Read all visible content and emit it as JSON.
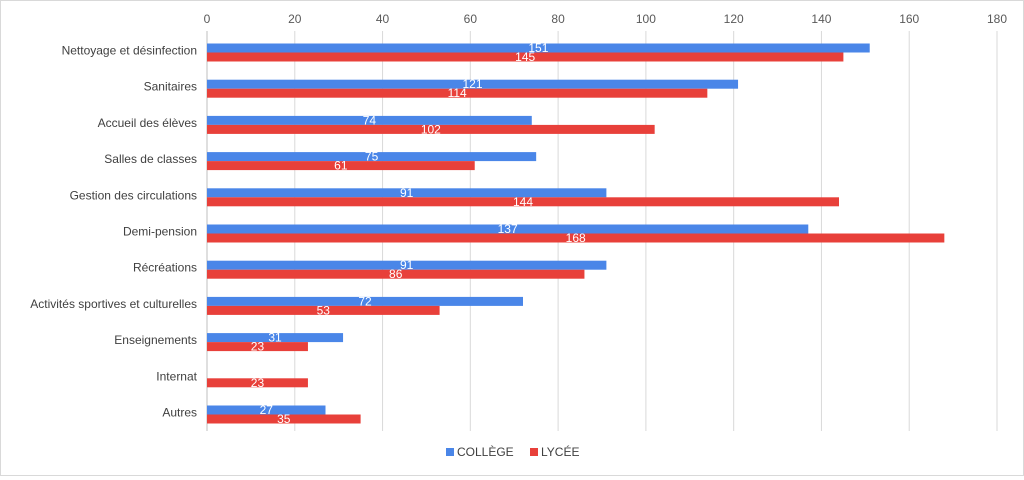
{
  "chart_data": {
    "type": "bar",
    "orientation": "horizontal",
    "categories": [
      "Nettoyage et désinfection",
      "Sanitaires",
      "Accueil des élèves",
      "Salles de classes",
      "Gestion des circulations",
      "Demi-pension",
      "Récréations",
      "Activités sportives et culturelles",
      "Enseignements",
      "Internat",
      "Autres"
    ],
    "series": [
      {
        "name": "COLLÈGE",
        "color": "#4a86e8",
        "values": [
          151,
          121,
          74,
          75,
          91,
          137,
          91,
          72,
          31,
          0,
          27
        ],
        "labels": [
          "151",
          "121",
          "74",
          "75",
          "91",
          "137",
          "91",
          "72",
          "31",
          "",
          "27"
        ]
      },
      {
        "name": "LYCÉE",
        "color": "#e8403a",
        "values": [
          145,
          114,
          102,
          61,
          144,
          168,
          86,
          53,
          23,
          23,
          35
        ],
        "labels": [
          "145",
          "114",
          "102",
          "61",
          "144",
          "168",
          "86",
          "53",
          "23",
          "23",
          "35"
        ]
      }
    ],
    "xlim": [
      0,
      180
    ],
    "xticks": [
      "0",
      "20",
      "40",
      "60",
      "80",
      "100",
      "120",
      "140",
      "160",
      "180"
    ],
    "tick_values": [
      0,
      20,
      40,
      60,
      80,
      100,
      120,
      140,
      160,
      180
    ],
    "grid": true,
    "legend_position": "bottom",
    "title": "",
    "xlabel": "",
    "ylabel": ""
  }
}
